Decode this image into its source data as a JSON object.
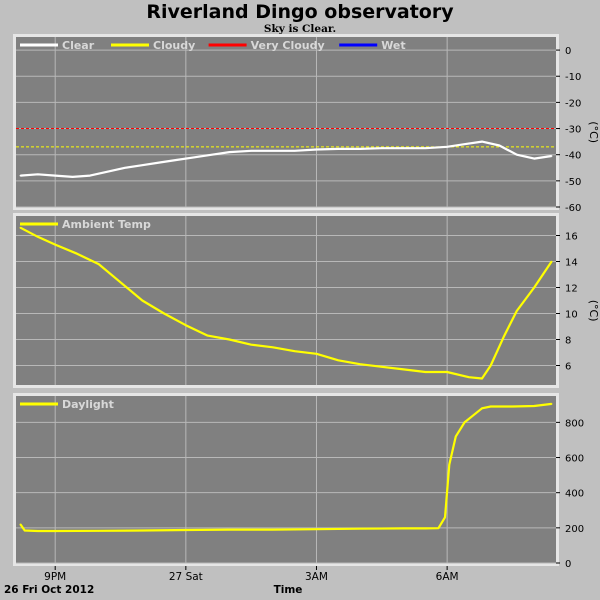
{
  "title": "Riverland Dingo observatory",
  "subtitle": "Sky is Clear.",
  "colors": {
    "page_bg": "#c0c0c0",
    "plot_bg": "#808080",
    "grid": "#b8b8b8",
    "clear": "#ffffff",
    "cloudy": "#ffff00",
    "very_cloudy": "#ff0000",
    "wet": "#0000ff",
    "series": "#ffff00"
  },
  "x_axis": {
    "label": "Time",
    "date_label": "26 Fri Oct 2012",
    "ticks": [
      {
        "label": "9PM",
        "hour": 21
      },
      {
        "label": "27 Sat",
        "hour": 24
      },
      {
        "label": "3AM",
        "hour": 27
      },
      {
        "label": "6AM",
        "hour": 30
      }
    ],
    "range_hours": [
      20.1,
      32.5
    ]
  },
  "chart_data": [
    {
      "type": "line",
      "ylabel": "(°C)",
      "ylim": [
        -60,
        5
      ],
      "yticks": [
        0,
        -10,
        -20,
        -30,
        -40,
        -50,
        -60
      ],
      "legend": [
        {
          "name": "Clear",
          "color": "#ffffff"
        },
        {
          "name": "Cloudy",
          "color": "#ffff00"
        },
        {
          "name": "Very Cloudy",
          "color": "#ff0000"
        },
        {
          "name": "Wet",
          "color": "#0000ff"
        }
      ],
      "thresholds": [
        {
          "value": -30,
          "color": "#ff0000"
        },
        {
          "value": -37,
          "color": "#ffff00"
        }
      ],
      "series": [
        {
          "name": "Clear",
          "color": "#ffffff",
          "x": [
            20.2,
            20.6,
            21.0,
            21.4,
            21.8,
            22.2,
            22.6,
            23.0,
            23.4,
            23.8,
            24.2,
            24.6,
            25.0,
            25.5,
            26.0,
            26.5,
            27.0,
            27.5,
            28.0,
            28.5,
            29.0,
            29.5,
            30.0,
            30.4,
            30.8,
            31.2,
            31.6,
            32.0,
            32.4
          ],
          "y": [
            -48,
            -47.5,
            -48,
            -48.5,
            -48,
            -46.5,
            -45,
            -44,
            -43,
            -42,
            -41,
            -40,
            -39,
            -38.5,
            -38.5,
            -38.5,
            -38,
            -37.8,
            -37.8,
            -37.5,
            -37.5,
            -37.5,
            -37,
            -36,
            -35,
            -36.5,
            -40,
            -41.5,
            -40.5
          ]
        }
      ]
    },
    {
      "type": "line",
      "ylabel": "(°C)",
      "ylim": [
        4.5,
        17.5
      ],
      "yticks": [
        16,
        14,
        12,
        10,
        8,
        6
      ],
      "legend": [
        {
          "name": "Ambient Temp",
          "color": "#ffff00"
        }
      ],
      "series": [
        {
          "name": "Ambient Temp",
          "color": "#ffff00",
          "x": [
            20.2,
            20.6,
            21.0,
            21.5,
            22.0,
            22.5,
            23.0,
            23.5,
            24.0,
            24.5,
            25.0,
            25.5,
            26.0,
            26.5,
            27.0,
            27.5,
            28.0,
            28.5,
            29.0,
            29.5,
            30.0,
            30.5,
            30.8,
            31.0,
            31.3,
            31.6,
            32.0,
            32.4
          ],
          "y": [
            16.6,
            15.9,
            15.3,
            14.6,
            13.8,
            12.4,
            11.0,
            10.0,
            9.1,
            8.3,
            8.0,
            7.6,
            7.4,
            7.1,
            6.9,
            6.4,
            6.1,
            5.9,
            5.7,
            5.5,
            5.5,
            5.1,
            5.0,
            6.0,
            8.2,
            10.2,
            12.0,
            14.0
          ]
        }
      ]
    },
    {
      "type": "line",
      "ylabel": "",
      "ylim": [
        0,
        950
      ],
      "yticks": [
        800,
        600,
        400,
        200,
        0
      ],
      "legend": [
        {
          "name": "Daylight",
          "color": "#ffff00"
        }
      ],
      "series": [
        {
          "name": "Daylight",
          "color": "#ffff00",
          "x": [
            20.2,
            20.3,
            20.6,
            21.0,
            22.0,
            23.0,
            24.0,
            25.0,
            26.0,
            27.0,
            28.0,
            29.0,
            29.5,
            29.8,
            29.95,
            30.05,
            30.2,
            30.4,
            30.6,
            30.8,
            31.0,
            31.5,
            32.0,
            32.4
          ],
          "y": [
            220,
            185,
            182,
            182,
            183,
            185,
            188,
            190,
            190,
            192,
            195,
            197,
            197,
            198,
            260,
            560,
            720,
            800,
            840,
            880,
            890,
            890,
            893,
            905
          ]
        }
      ]
    }
  ]
}
